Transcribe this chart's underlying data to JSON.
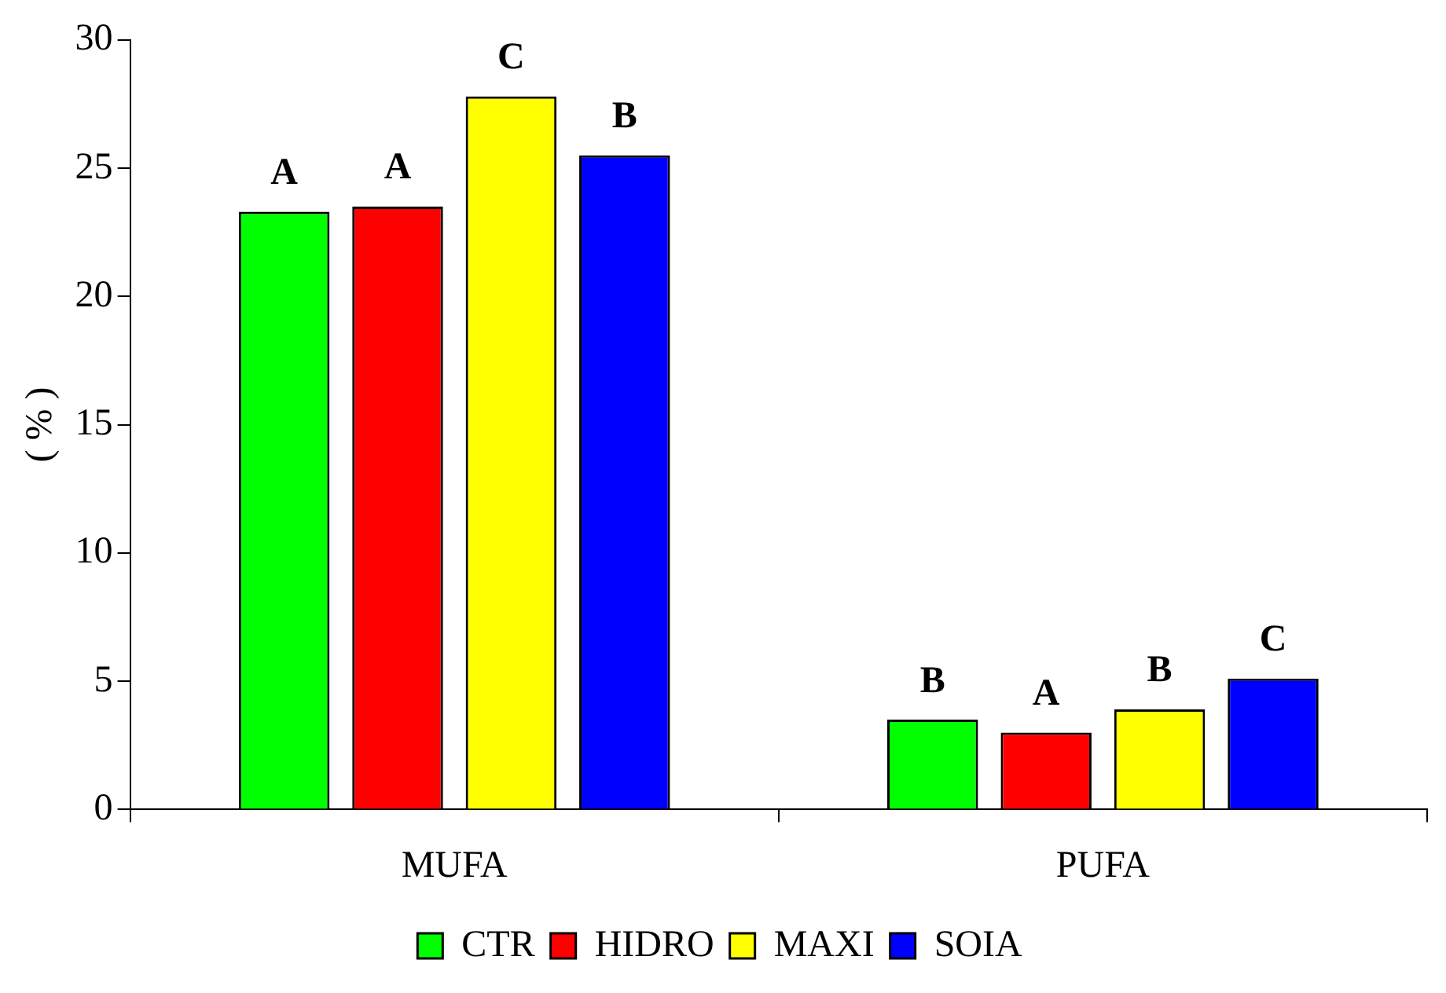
{
  "chart_data": {
    "type": "bar",
    "ylabel": "( % )",
    "categories": [
      "MUFA",
      "PUFA"
    ],
    "series": [
      {
        "name": "CTR",
        "color": "#00ff00",
        "values": [
          23.3,
          3.5
        ],
        "value_labels": [
          "A",
          "B"
        ]
      },
      {
        "name": "HIDRO",
        "color": "#ff0000",
        "values": [
          23.5,
          3.0
        ],
        "value_labels": [
          "A",
          "A"
        ]
      },
      {
        "name": "MAXI",
        "color": "#ffff00",
        "values": [
          27.8,
          3.9
        ],
        "value_labels": [
          "C",
          "B"
        ]
      },
      {
        "name": "SOIA",
        "color": "#0000ff",
        "values": [
          25.5,
          5.1
        ],
        "value_labels": [
          "B",
          "C"
        ]
      }
    ],
    "ylim": [
      0,
      30
    ],
    "yticks": [
      0,
      5,
      10,
      15,
      20,
      25,
      30
    ],
    "grid": false,
    "legend": "bottom"
  }
}
